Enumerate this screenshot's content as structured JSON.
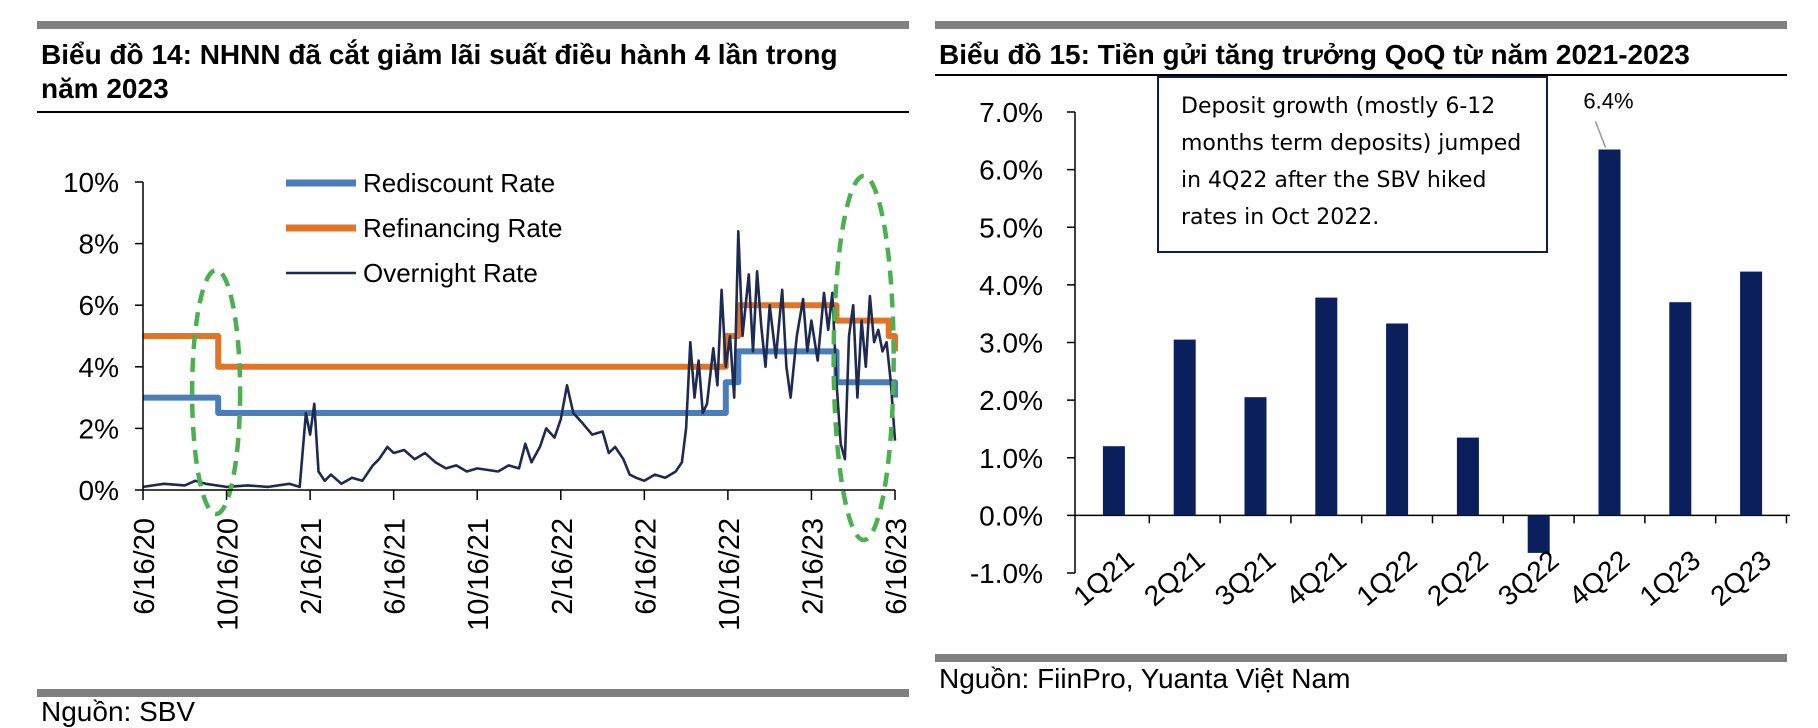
{
  "left": {
    "title": "Biểu đồ 14: NHNN đã cắt giảm lãi suất điều hành 4 lần trong năm 2023",
    "source": "Nguồn: SBV"
  },
  "right": {
    "title": "Biểu đồ 15: Tiền gửi tăng trưởng QoQ từ năm 2021-2023",
    "source": "Nguồn: FiinPro, Yuanta Việt Nam",
    "annotation": "Deposit growth (mostly 6-12 months term deposits) jumped in 4Q22 after the SBV hiked rates in Oct 2022.",
    "callout": "6.4%"
  },
  "colors": {
    "rediscount": "#4a7ebb",
    "refinancing": "#e07528",
    "overnight": "#1f2a52",
    "bars": "#0b1f5c",
    "ellipse": "#4caf50"
  },
  "chart_data": [
    {
      "type": "line",
      "title": "Biểu đồ 14: NHNN đã cắt giảm lãi suất điều hành 4 lần trong năm 2023",
      "xlabel": "",
      "ylabel": "",
      "x_range": [
        0,
        36
      ],
      "x_ticks": [
        {
          "x": 0,
          "label": "6/16/20"
        },
        {
          "x": 4,
          "label": "10/16/20"
        },
        {
          "x": 8,
          "label": "2/16/21"
        },
        {
          "x": 12,
          "label": "6/16/21"
        },
        {
          "x": 16,
          "label": "10/16/21"
        },
        {
          "x": 20,
          "label": "2/16/22"
        },
        {
          "x": 24,
          "label": "6/16/22"
        },
        {
          "x": 28,
          "label": "10/16/22"
        },
        {
          "x": 32,
          "label": "2/16/23"
        },
        {
          "x": 36,
          "label": "6/16/23"
        }
      ],
      "ylim": [
        0,
        10
      ],
      "y_ticks": [
        0,
        2,
        4,
        6,
        8,
        10
      ],
      "y_tick_labels": [
        "0%",
        "2%",
        "4%",
        "6%",
        "8%",
        "10%"
      ],
      "legend": [
        "Rediscount Rate",
        "Refinancing Rate",
        "Overnight Rate"
      ],
      "legend_position": "top-left",
      "series": [
        {
          "name": "Rediscount Rate",
          "color_key": "rediscount",
          "step": true,
          "points": [
            [
              0,
              3.0
            ],
            [
              3.6,
              3.0
            ],
            [
              3.6,
              2.5
            ],
            [
              27.9,
              2.5
            ],
            [
              27.9,
              3.5
            ],
            [
              28.5,
              3.5
            ],
            [
              28.5,
              4.5
            ],
            [
              33.2,
              4.5
            ],
            [
              33.2,
              3.5
            ],
            [
              36,
              3.5
            ],
            [
              36,
              3.0
            ]
          ]
        },
        {
          "name": "Refinancing Rate",
          "color_key": "refinancing",
          "step": true,
          "points": [
            [
              0,
              5.0
            ],
            [
              3.6,
              5.0
            ],
            [
              3.6,
              4.0
            ],
            [
              27.9,
              4.0
            ],
            [
              27.9,
              5.0
            ],
            [
              28.5,
              5.0
            ],
            [
              28.5,
              6.0
            ],
            [
              33.2,
              6.0
            ],
            [
              33.2,
              5.5
            ],
            [
              35.7,
              5.5
            ],
            [
              35.7,
              5.0
            ],
            [
              36,
              5.0
            ],
            [
              36,
              4.5
            ]
          ]
        },
        {
          "name": "Overnight Rate",
          "color_key": "overnight",
          "step": false,
          "points": [
            [
              0,
              0.1
            ],
            [
              1,
              0.2
            ],
            [
              2,
              0.15
            ],
            [
              2.5,
              0.3
            ],
            [
              3,
              0.2
            ],
            [
              4,
              0.1
            ],
            [
              5,
              0.15
            ],
            [
              6,
              0.1
            ],
            [
              7,
              0.2
            ],
            [
              7.5,
              0.1
            ],
            [
              7.8,
              2.5
            ],
            [
              8,
              1.8
            ],
            [
              8.2,
              2.8
            ],
            [
              8.4,
              0.6
            ],
            [
              8.7,
              0.3
            ],
            [
              9,
              0.5
            ],
            [
              9.5,
              0.2
            ],
            [
              10,
              0.4
            ],
            [
              10.5,
              0.3
            ],
            [
              11,
              0.8
            ],
            [
              11.3,
              1.0
            ],
            [
              11.7,
              1.4
            ],
            [
              12,
              1.2
            ],
            [
              12.5,
              1.3
            ],
            [
              13,
              1.0
            ],
            [
              13.5,
              1.2
            ],
            [
              14,
              0.9
            ],
            [
              14.5,
              0.7
            ],
            [
              15,
              0.8
            ],
            [
              15.5,
              0.6
            ],
            [
              16,
              0.7
            ],
            [
              17,
              0.6
            ],
            [
              17.5,
              0.8
            ],
            [
              18,
              0.7
            ],
            [
              18.3,
              1.5
            ],
            [
              18.6,
              0.9
            ],
            [
              19,
              1.4
            ],
            [
              19.3,
              2.0
            ],
            [
              19.7,
              1.7
            ],
            [
              20,
              2.3
            ],
            [
              20.3,
              3.4
            ],
            [
              20.6,
              2.5
            ],
            [
              21,
              2.2
            ],
            [
              21.5,
              1.8
            ],
            [
              22,
              1.9
            ],
            [
              22.3,
              1.2
            ],
            [
              22.6,
              1.4
            ],
            [
              23,
              1.0
            ],
            [
              23.3,
              0.5
            ],
            [
              23.6,
              0.4
            ],
            [
              24,
              0.3
            ],
            [
              24.5,
              0.5
            ],
            [
              25,
              0.4
            ],
            [
              25.5,
              0.6
            ],
            [
              25.8,
              0.9
            ],
            [
              26,
              2.0
            ],
            [
              26.2,
              4.8
            ],
            [
              26.4,
              3.0
            ],
            [
              26.6,
              4.2
            ],
            [
              26.8,
              2.5
            ],
            [
              27,
              2.8
            ],
            [
              27.3,
              4.6
            ],
            [
              27.5,
              3.4
            ],
            [
              27.7,
              6.5
            ],
            [
              27.9,
              4.0
            ],
            [
              28.1,
              5.0
            ],
            [
              28.3,
              3.0
            ],
            [
              28.5,
              8.4
            ],
            [
              28.7,
              5.0
            ],
            [
              29,
              7.0
            ],
            [
              29.2,
              4.5
            ],
            [
              29.4,
              7.1
            ],
            [
              29.6,
              5.3
            ],
            [
              29.8,
              4.0
            ],
            [
              30,
              6.0
            ],
            [
              30.3,
              4.3
            ],
            [
              30.6,
              6.5
            ],
            [
              30.8,
              4.0
            ],
            [
              31,
              3.0
            ],
            [
              31.3,
              5.0
            ],
            [
              31.6,
              6.2
            ],
            [
              31.8,
              4.5
            ],
            [
              32,
              5.5
            ],
            [
              32.3,
              4.2
            ],
            [
              32.6,
              6.4
            ],
            [
              32.8,
              5.2
            ],
            [
              33,
              6.4
            ],
            [
              33.2,
              3.5
            ],
            [
              33.4,
              1.5
            ],
            [
              33.6,
              1.0
            ],
            [
              33.8,
              5.0
            ],
            [
              34,
              6.0
            ],
            [
              34.2,
              3.0
            ],
            [
              34.4,
              5.5
            ],
            [
              34.6,
              4.0
            ],
            [
              34.8,
              6.3
            ],
            [
              35,
              4.8
            ],
            [
              35.2,
              5.2
            ],
            [
              35.4,
              4.5
            ],
            [
              35.6,
              4.8
            ],
            [
              35.8,
              3.5
            ],
            [
              36,
              1.6
            ]
          ]
        }
      ],
      "annotations": [
        "green dashed ellipse around 10/2020 rate cut",
        "green dashed ellipse around 2023 rate cuts"
      ]
    },
    {
      "type": "bar",
      "title": "Biểu đồ 15: Tiền gửi tăng trưởng QoQ từ năm 2021-2023",
      "xlabel": "",
      "ylabel": "",
      "categories": [
        "1Q21",
        "2Q21",
        "3Q21",
        "4Q21",
        "1Q22",
        "2Q22",
        "3Q22",
        "4Q22",
        "1Q23",
        "2Q23"
      ],
      "values": [
        1.2,
        3.05,
        2.05,
        3.78,
        3.33,
        1.35,
        -0.65,
        6.35,
        3.7,
        4.23
      ],
      "ylim": [
        -1.0,
        7.0
      ],
      "y_ticks": [
        -1.0,
        0.0,
        1.0,
        2.0,
        3.0,
        4.0,
        5.0,
        6.0,
        7.0
      ],
      "y_tick_labels": [
        "-1.0%",
        "0.0%",
        "1.0%",
        "2.0%",
        "3.0%",
        "4.0%",
        "5.0%",
        "6.0%",
        "7.0%"
      ],
      "data_labels": [
        {
          "category": "4Q22",
          "label": "6.4%"
        }
      ],
      "legend": []
    }
  ]
}
